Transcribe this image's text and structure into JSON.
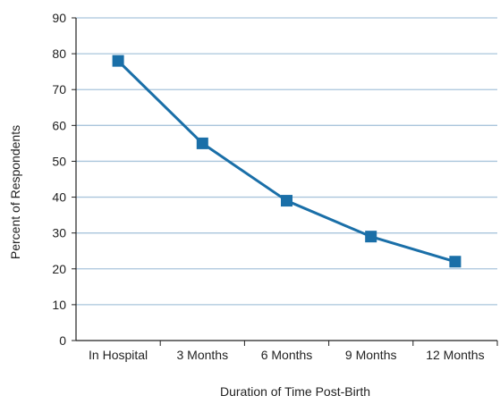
{
  "chart_data": {
    "type": "line",
    "title": "",
    "xlabel": "Duration of Time Post-Birth",
    "ylabel": "Percent of Respondents",
    "categories": [
      "In Hospital",
      "3 Months",
      "6 Months",
      "9 Months",
      "12 Months"
    ],
    "series": [
      {
        "values": [
          78,
          55,
          39,
          29,
          22
        ]
      }
    ],
    "ylim": [
      0,
      90
    ],
    "yticks": [
      0,
      10,
      20,
      30,
      40,
      50,
      60,
      70,
      80,
      90
    ],
    "grid": true,
    "legend": "none",
    "colors": {
      "series": "#1a6fa8",
      "grid": "#a9c5dc",
      "axis": "#222222"
    }
  }
}
